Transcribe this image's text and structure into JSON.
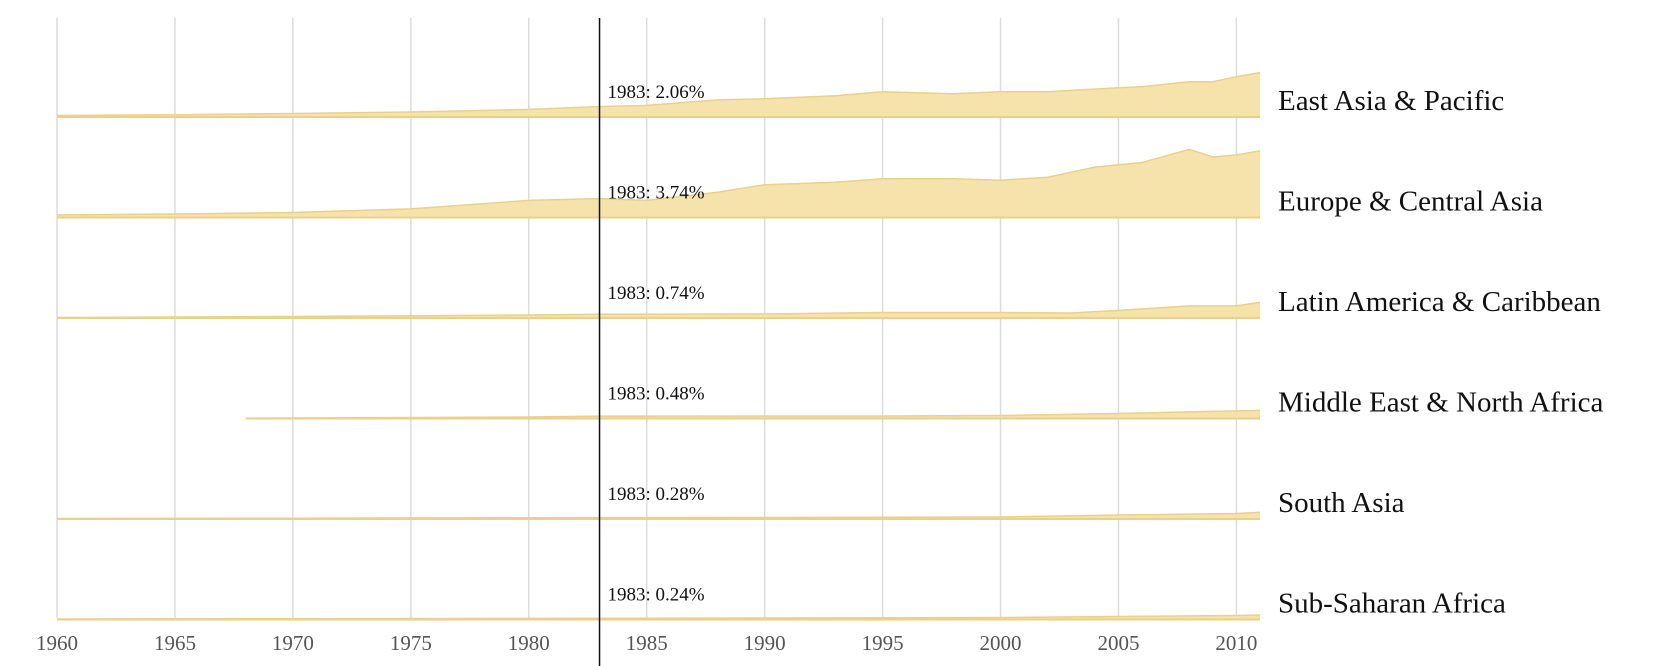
{
  "chart_data": {
    "type": "area",
    "layout": "small-multiples",
    "x_domain": [
      1960,
      2011
    ],
    "x_ticks": [
      1960,
      1965,
      1970,
      1975,
      1980,
      1985,
      1990,
      1995,
      2000,
      2005,
      2010
    ],
    "y_max_per_row": 11.5,
    "hover_year": 1983,
    "grid": true,
    "colors": {
      "fill": "#f5e2a8",
      "stroke": "#ead08a",
      "cursor": "#111111",
      "grid": "#dcdcdc"
    },
    "series": [
      {
        "name": "East Asia & Pacific",
        "hover_label": "1983: 2.06%",
        "points": [
          [
            1960,
            0.3
          ],
          [
            1965,
            0.45
          ],
          [
            1970,
            0.7
          ],
          [
            1975,
            1.0
          ],
          [
            1980,
            1.5
          ],
          [
            1983,
            2.06
          ],
          [
            1985,
            2.3
          ],
          [
            1988,
            3.4
          ],
          [
            1990,
            3.6
          ],
          [
            1993,
            4.2
          ],
          [
            1995,
            5.0
          ],
          [
            1998,
            4.6
          ],
          [
            2000,
            5.0
          ],
          [
            2002,
            5.0
          ],
          [
            2005,
            5.8
          ],
          [
            2006,
            6.0
          ],
          [
            2008,
            7.0
          ],
          [
            2009,
            7.0
          ],
          [
            2010,
            8.0
          ],
          [
            2011,
            8.8
          ]
        ]
      },
      {
        "name": "Europe & Central Asia",
        "hover_label": "1983: 3.74%",
        "points": [
          [
            1960,
            0.5
          ],
          [
            1965,
            0.7
          ],
          [
            1970,
            1.0
          ],
          [
            1975,
            1.7
          ],
          [
            1980,
            3.4
          ],
          [
            1983,
            3.74
          ],
          [
            1985,
            3.4
          ],
          [
            1988,
            5.0
          ],
          [
            1990,
            6.5
          ],
          [
            1993,
            7.0
          ],
          [
            1995,
            7.7
          ],
          [
            1998,
            7.7
          ],
          [
            2000,
            7.4
          ],
          [
            2002,
            8.0
          ],
          [
            2004,
            10.0
          ],
          [
            2006,
            10.9
          ],
          [
            2008,
            13.5
          ],
          [
            2009,
            12.0
          ],
          [
            2010,
            12.4
          ],
          [
            2011,
            13.2
          ]
        ]
      },
      {
        "name": "Latin America & Caribbean",
        "hover_label": "1983: 0.74%",
        "points": [
          [
            1960,
            0.1
          ],
          [
            1970,
            0.3
          ],
          [
            1980,
            0.6
          ],
          [
            1983,
            0.74
          ],
          [
            1990,
            0.8
          ],
          [
            1995,
            1.1
          ],
          [
            2000,
            1.1
          ],
          [
            2003,
            1.0
          ],
          [
            2005,
            1.5
          ],
          [
            2008,
            2.4
          ],
          [
            2010,
            2.4
          ],
          [
            2011,
            3.1
          ]
        ]
      },
      {
        "name": "Middle East & North Africa",
        "hover_label": "1983: 0.48%",
        "points": [
          [
            1968,
            0.05
          ],
          [
            1975,
            0.2
          ],
          [
            1980,
            0.3
          ],
          [
            1983,
            0.48
          ],
          [
            1990,
            0.5
          ],
          [
            1995,
            0.5
          ],
          [
            2000,
            0.6
          ],
          [
            2005,
            1.0
          ],
          [
            2008,
            1.3
          ],
          [
            2011,
            1.6
          ]
        ]
      },
      {
        "name": "South Asia",
        "hover_label": "1983: 0.28%",
        "points": [
          [
            1960,
            0.1
          ],
          [
            1970,
            0.15
          ],
          [
            1980,
            0.25
          ],
          [
            1983,
            0.28
          ],
          [
            1990,
            0.3
          ],
          [
            2000,
            0.4
          ],
          [
            2005,
            0.8
          ],
          [
            2010,
            1.1
          ],
          [
            2011,
            1.3
          ]
        ]
      },
      {
        "name": "Sub-Saharan Africa",
        "hover_label": "1983: 0.24%",
        "points": [
          [
            1960,
            0.1
          ],
          [
            1970,
            0.15
          ],
          [
            1980,
            0.22
          ],
          [
            1983,
            0.24
          ],
          [
            1990,
            0.3
          ],
          [
            2000,
            0.4
          ],
          [
            2005,
            0.6
          ],
          [
            2010,
            0.8
          ],
          [
            2011,
            0.9
          ]
        ]
      }
    ]
  }
}
